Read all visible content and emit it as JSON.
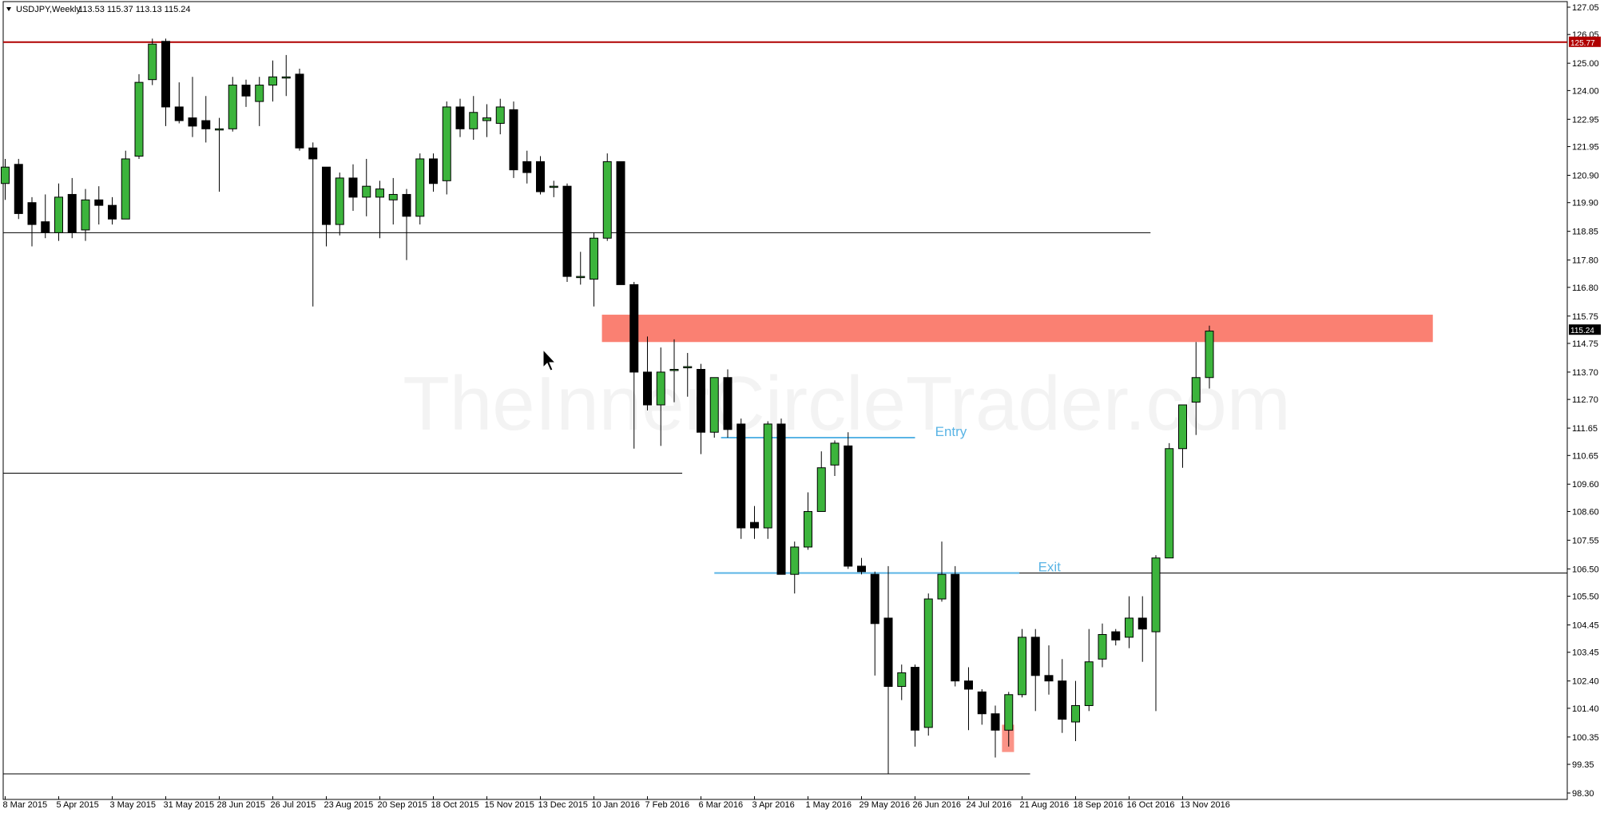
{
  "chart_data": {
    "type": "candlestick",
    "symbol": "USDJPY,Weekly",
    "ohlc_header": "113.53 115.37 113.13 115.24",
    "watermark": "TheInnerCircleTrader.com",
    "ylim": [
      98.3,
      127.1
    ],
    "price_ticks": [
      "127.05",
      "126.05",
      "125.00",
      "124.00",
      "122.95",
      "121.95",
      "120.90",
      "119.90",
      "118.85",
      "117.80",
      "116.80",
      "115.75",
      "114.75",
      "113.70",
      "112.70",
      "111.65",
      "110.65",
      "109.60",
      "108.60",
      "107.55",
      "106.50",
      "105.50",
      "104.45",
      "103.45",
      "102.40",
      "101.40",
      "100.35",
      "99.35",
      "98.30"
    ],
    "date_labels": [
      {
        "i": 0,
        "text": "8 Mar 2015"
      },
      {
        "i": 4,
        "text": "5 Apr 2015"
      },
      {
        "i": 8,
        "text": "3 May 2015"
      },
      {
        "i": 12,
        "text": "31 May 2015"
      },
      {
        "i": 16,
        "text": "28 Jun 2015"
      },
      {
        "i": 20,
        "text": "26 Jul 2015"
      },
      {
        "i": 24,
        "text": "23 Aug 2015"
      },
      {
        "i": 28,
        "text": "20 Sep 2015"
      },
      {
        "i": 32,
        "text": "18 Oct 2015"
      },
      {
        "i": 36,
        "text": "15 Nov 2015"
      },
      {
        "i": 40,
        "text": "13 Dec 2015"
      },
      {
        "i": 44,
        "text": "10 Jan 2016"
      },
      {
        "i": 48,
        "text": "7 Feb 2016"
      },
      {
        "i": 52,
        "text": "6 Mar 2016"
      },
      {
        "i": 56,
        "text": "3 Apr 2016"
      },
      {
        "i": 60,
        "text": "1 May 2016"
      },
      {
        "i": 64,
        "text": "29 May 2016"
      },
      {
        "i": 68,
        "text": "26 Jun 2016"
      },
      {
        "i": 72,
        "text": "24 Jul 2016"
      },
      {
        "i": 76,
        "text": "21 Aug 2016"
      },
      {
        "i": 80,
        "text": "18 Sep 2016"
      },
      {
        "i": 84,
        "text": "16 Oct 2016"
      },
      {
        "i": 88,
        "text": "13 Nov 2016"
      }
    ],
    "candles": [
      {
        "o": 120.6,
        "h": 121.5,
        "l": 120.0,
        "c": 121.2
      },
      {
        "o": 121.3,
        "h": 121.5,
        "l": 119.3,
        "c": 119.5
      },
      {
        "o": 119.9,
        "h": 120.1,
        "l": 118.3,
        "c": 119.1
      },
      {
        "o": 119.2,
        "h": 120.2,
        "l": 118.6,
        "c": 118.8
      },
      {
        "o": 118.8,
        "h": 120.6,
        "l": 118.5,
        "c": 120.1
      },
      {
        "o": 120.2,
        "h": 120.8,
        "l": 118.6,
        "c": 118.8
      },
      {
        "o": 118.9,
        "h": 120.4,
        "l": 118.5,
        "c": 120.0
      },
      {
        "o": 120.0,
        "h": 120.5,
        "l": 119.1,
        "c": 119.8
      },
      {
        "o": 119.8,
        "h": 120.1,
        "l": 119.1,
        "c": 119.3
      },
      {
        "o": 119.3,
        "h": 121.8,
        "l": 119.3,
        "c": 121.5
      },
      {
        "o": 121.6,
        "h": 124.6,
        "l": 121.5,
        "c": 124.3
      },
      {
        "o": 124.4,
        "h": 125.9,
        "l": 124.2,
        "c": 125.7
      },
      {
        "o": 125.8,
        "h": 125.9,
        "l": 122.7,
        "c": 123.4
      },
      {
        "o": 123.4,
        "h": 124.3,
        "l": 122.8,
        "c": 122.9
      },
      {
        "o": 123.0,
        "h": 124.5,
        "l": 122.3,
        "c": 122.7
      },
      {
        "o": 122.9,
        "h": 123.8,
        "l": 122.1,
        "c": 122.6
      },
      {
        "o": 122.6,
        "h": 123.0,
        "l": 120.3,
        "c": 122.6
      },
      {
        "o": 122.6,
        "h": 124.5,
        "l": 122.5,
        "c": 124.2
      },
      {
        "o": 124.2,
        "h": 124.4,
        "l": 123.4,
        "c": 123.8
      },
      {
        "o": 123.6,
        "h": 124.5,
        "l": 122.7,
        "c": 124.2
      },
      {
        "o": 124.2,
        "h": 125.1,
        "l": 123.6,
        "c": 124.5
      },
      {
        "o": 124.5,
        "h": 125.3,
        "l": 123.8,
        "c": 124.5
      },
      {
        "o": 124.6,
        "h": 124.8,
        "l": 121.8,
        "c": 121.9
      },
      {
        "o": 121.9,
        "h": 122.1,
        "l": 116.1,
        "c": 121.5
      },
      {
        "o": 121.2,
        "h": 121.2,
        "l": 118.3,
        "c": 119.1
      },
      {
        "o": 119.1,
        "h": 121.0,
        "l": 118.7,
        "c": 120.8
      },
      {
        "o": 120.8,
        "h": 121.3,
        "l": 119.6,
        "c": 120.1
      },
      {
        "o": 120.1,
        "h": 121.5,
        "l": 119.4,
        "c": 120.5
      },
      {
        "o": 120.1,
        "h": 120.7,
        "l": 118.6,
        "c": 120.4
      },
      {
        "o": 120.0,
        "h": 120.8,
        "l": 119.1,
        "c": 120.2
      },
      {
        "o": 120.2,
        "h": 120.4,
        "l": 117.8,
        "c": 119.4
      },
      {
        "o": 119.4,
        "h": 121.7,
        "l": 119.1,
        "c": 121.5
      },
      {
        "o": 121.5,
        "h": 121.7,
        "l": 120.3,
        "c": 120.6
      },
      {
        "o": 120.7,
        "h": 123.6,
        "l": 120.2,
        "c": 123.4
      },
      {
        "o": 123.4,
        "h": 123.7,
        "l": 122.3,
        "c": 122.6
      },
      {
        "o": 122.6,
        "h": 123.8,
        "l": 122.2,
        "c": 123.2
      },
      {
        "o": 122.9,
        "h": 123.5,
        "l": 122.3,
        "c": 123.0
      },
      {
        "o": 122.8,
        "h": 123.7,
        "l": 122.4,
        "c": 123.4
      },
      {
        "o": 123.3,
        "h": 123.6,
        "l": 120.8,
        "c": 121.1
      },
      {
        "o": 121.4,
        "h": 121.8,
        "l": 120.6,
        "c": 121.0
      },
      {
        "o": 121.4,
        "h": 121.6,
        "l": 120.2,
        "c": 120.3
      },
      {
        "o": 120.5,
        "h": 120.7,
        "l": 120.1,
        "c": 120.5
      },
      {
        "o": 120.5,
        "h": 120.6,
        "l": 117.0,
        "c": 117.2
      },
      {
        "o": 117.2,
        "h": 118.1,
        "l": 116.9,
        "c": 117.2
      },
      {
        "o": 117.1,
        "h": 118.8,
        "l": 116.1,
        "c": 118.6
      },
      {
        "o": 118.6,
        "h": 121.7,
        "l": 118.5,
        "c": 121.4
      },
      {
        "o": 121.4,
        "h": 121.4,
        "l": 116.9,
        "c": 116.9
      },
      {
        "o": 116.9,
        "h": 117.0,
        "l": 110.9,
        "c": 113.7
      },
      {
        "o": 113.7,
        "h": 115.0,
        "l": 112.3,
        "c": 112.5
      },
      {
        "o": 112.5,
        "h": 114.6,
        "l": 111.0,
        "c": 113.7
      },
      {
        "o": 113.8,
        "h": 114.9,
        "l": 112.6,
        "c": 113.8
      },
      {
        "o": 113.9,
        "h": 114.4,
        "l": 112.8,
        "c": 113.9
      },
      {
        "o": 113.8,
        "h": 114.0,
        "l": 110.7,
        "c": 111.5
      },
      {
        "o": 111.5,
        "h": 113.5,
        "l": 111.3,
        "c": 113.5
      },
      {
        "o": 113.5,
        "h": 113.8,
        "l": 111.3,
        "c": 111.6
      },
      {
        "o": 111.8,
        "h": 112.0,
        "l": 107.6,
        "c": 108.0
      },
      {
        "o": 108.2,
        "h": 108.8,
        "l": 107.6,
        "c": 108.0
      },
      {
        "o": 108.0,
        "h": 111.9,
        "l": 107.6,
        "c": 111.8
      },
      {
        "o": 111.8,
        "h": 112.0,
        "l": 106.3,
        "c": 106.3
      },
      {
        "o": 106.3,
        "h": 107.5,
        "l": 105.6,
        "c": 107.3
      },
      {
        "o": 107.3,
        "h": 109.3,
        "l": 107.2,
        "c": 108.6
      },
      {
        "o": 108.6,
        "h": 110.8,
        "l": 108.6,
        "c": 110.2
      },
      {
        "o": 110.3,
        "h": 111.2,
        "l": 109.9,
        "c": 111.1
      },
      {
        "o": 111.0,
        "h": 111.5,
        "l": 106.5,
        "c": 106.6
      },
      {
        "o": 106.6,
        "h": 106.9,
        "l": 106.3,
        "c": 106.4
      },
      {
        "o": 106.3,
        "h": 106.4,
        "l": 102.6,
        "c": 104.5
      },
      {
        "o": 104.7,
        "h": 106.6,
        "l": 99.0,
        "c": 102.2
      },
      {
        "o": 102.2,
        "h": 103.0,
        "l": 101.7,
        "c": 102.7
      },
      {
        "o": 102.9,
        "h": 103.0,
        "l": 100.0,
        "c": 100.6
      },
      {
        "o": 100.7,
        "h": 105.6,
        "l": 100.4,
        "c": 105.4
      },
      {
        "o": 105.4,
        "h": 107.5,
        "l": 105.3,
        "c": 106.3
      },
      {
        "o": 106.3,
        "h": 106.6,
        "l": 102.2,
        "c": 102.4
      },
      {
        "o": 102.4,
        "h": 102.9,
        "l": 100.6,
        "c": 102.1
      },
      {
        "o": 102.0,
        "h": 102.1,
        "l": 100.8,
        "c": 101.2
      },
      {
        "o": 101.2,
        "h": 101.5,
        "l": 99.6,
        "c": 100.6
      },
      {
        "o": 100.6,
        "h": 102.0,
        "l": 100.0,
        "c": 101.9
      },
      {
        "o": 101.9,
        "h": 104.3,
        "l": 101.8,
        "c": 104.0
      },
      {
        "o": 104.0,
        "h": 104.3,
        "l": 101.3,
        "c": 102.6
      },
      {
        "o": 102.6,
        "h": 103.7,
        "l": 101.9,
        "c": 102.4
      },
      {
        "o": 102.4,
        "h": 103.2,
        "l": 100.5,
        "c": 101.0
      },
      {
        "o": 100.9,
        "h": 102.4,
        "l": 100.2,
        "c": 101.5
      },
      {
        "o": 101.5,
        "h": 104.3,
        "l": 101.3,
        "c": 103.1
      },
      {
        "o": 103.2,
        "h": 104.5,
        "l": 102.9,
        "c": 104.1
      },
      {
        "o": 104.2,
        "h": 104.3,
        "l": 103.7,
        "c": 103.9
      },
      {
        "o": 104.0,
        "h": 105.5,
        "l": 103.6,
        "c": 104.7
      },
      {
        "o": 104.7,
        "h": 105.5,
        "l": 103.1,
        "c": 104.3
      },
      {
        "o": 104.2,
        "h": 107.0,
        "l": 101.3,
        "c": 106.9
      },
      {
        "o": 106.9,
        "h": 111.1,
        "l": 106.9,
        "c": 110.9
      },
      {
        "o": 110.9,
        "h": 112.5,
        "l": 110.2,
        "c": 112.5
      },
      {
        "o": 112.6,
        "h": 114.8,
        "l": 111.4,
        "c": 113.5
      },
      {
        "o": 113.5,
        "h": 115.4,
        "l": 113.1,
        "c": 115.2
      }
    ],
    "levels": [
      {
        "price": 125.77,
        "color": "#b00000",
        "to_i": 120,
        "tag": "125.77"
      },
      {
        "price": 118.8,
        "color": "#000000",
        "to_i": 85.6
      },
      {
        "price": 110.0,
        "color": "#000000",
        "to_i": 50.6
      },
      {
        "price": 106.35,
        "color": "#000000",
        "from_i": 54.6,
        "to_i": 120
      },
      {
        "price": 99.0,
        "color": "#000000",
        "to_i": 76.6
      }
    ],
    "current_price": {
      "price": 115.24,
      "tag": "115.24"
    },
    "zone": {
      "from_i": 44.6,
      "to_i": 106.7,
      "top": 115.8,
      "bottom": 114.8,
      "color": "#fa8072"
    },
    "small_zone": {
      "from_i": 74.5,
      "to_i": 75.4,
      "top": 100.8,
      "bottom": 99.8,
      "color": "#fa8072"
    },
    "annotations": [
      {
        "text": "Entry",
        "price": 111.3,
        "from_i": 53.5,
        "to_i": 68.0,
        "label_i": 69.5,
        "color": "#5ab4e5"
      },
      {
        "text": "Exit",
        "price": 106.35,
        "from_i": 53.0,
        "to_i": 75.8,
        "label_i": 77.2,
        "color": "#5ab4e5"
      }
    ],
    "colors": {
      "bull": "#3cb43c",
      "bear": "#000000",
      "axis": "#000000"
    }
  }
}
